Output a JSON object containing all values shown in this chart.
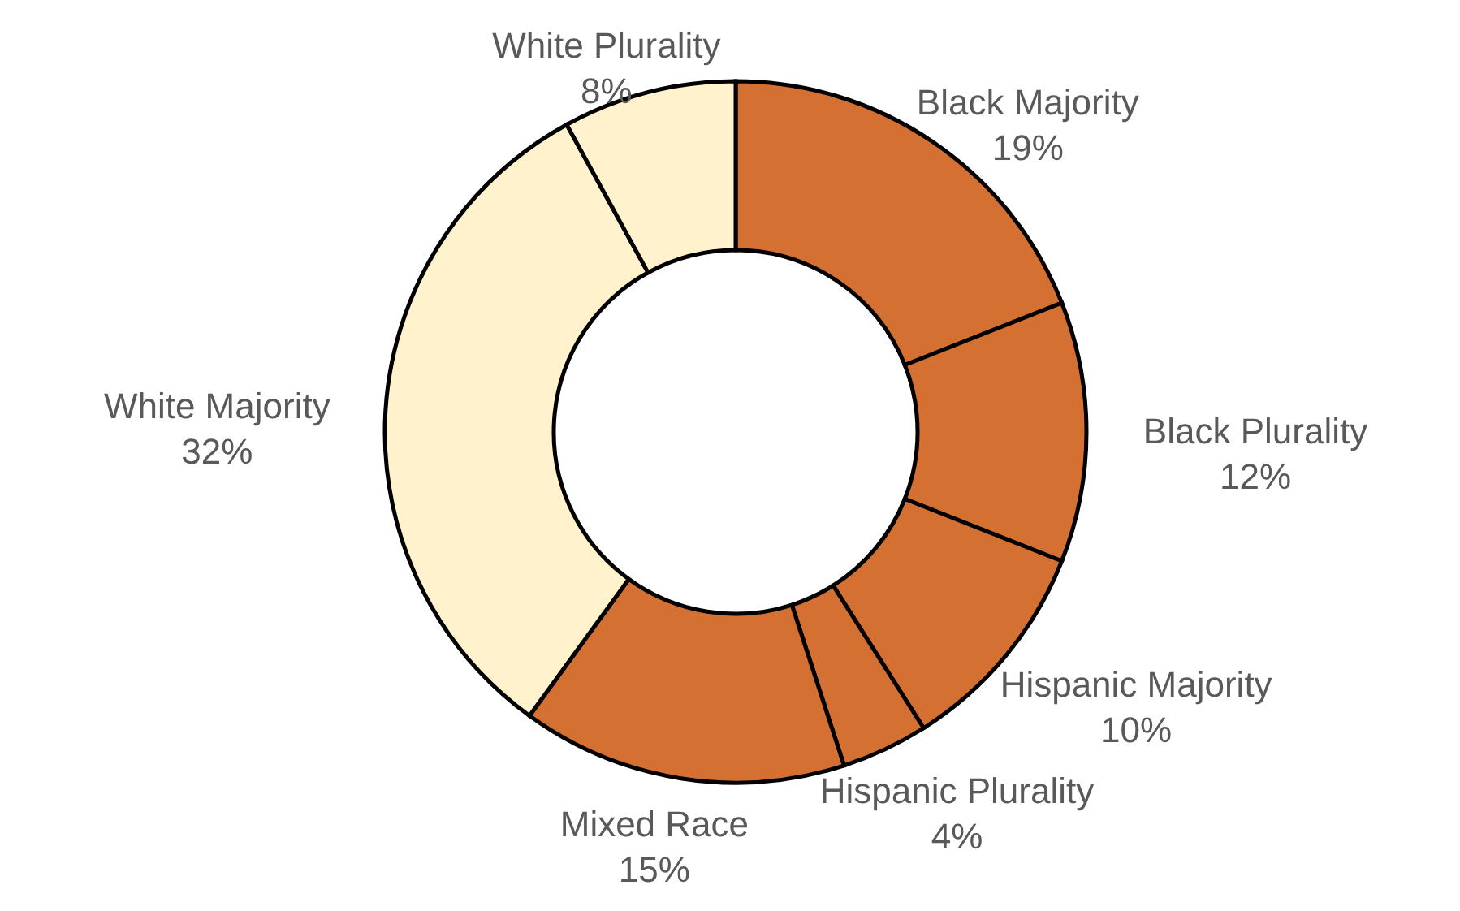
{
  "chart_data": {
    "type": "donut",
    "categories": [
      "Black Majority",
      "Black Plurality",
      "Hispanic Majority",
      "Hispanic Plurality",
      "Mixed Race",
      "White Majority",
      "White Plurality"
    ],
    "values": [
      19,
      12,
      10,
      4,
      15,
      32,
      8
    ],
    "value_labels": [
      "19%",
      "12%",
      "10%",
      "4%",
      "15%",
      "32%",
      "8%"
    ],
    "colors": [
      "#d47032",
      "#d47032",
      "#d47032",
      "#d47032",
      "#d47032",
      "#fff2cc",
      "#fff2cc"
    ]
  }
}
